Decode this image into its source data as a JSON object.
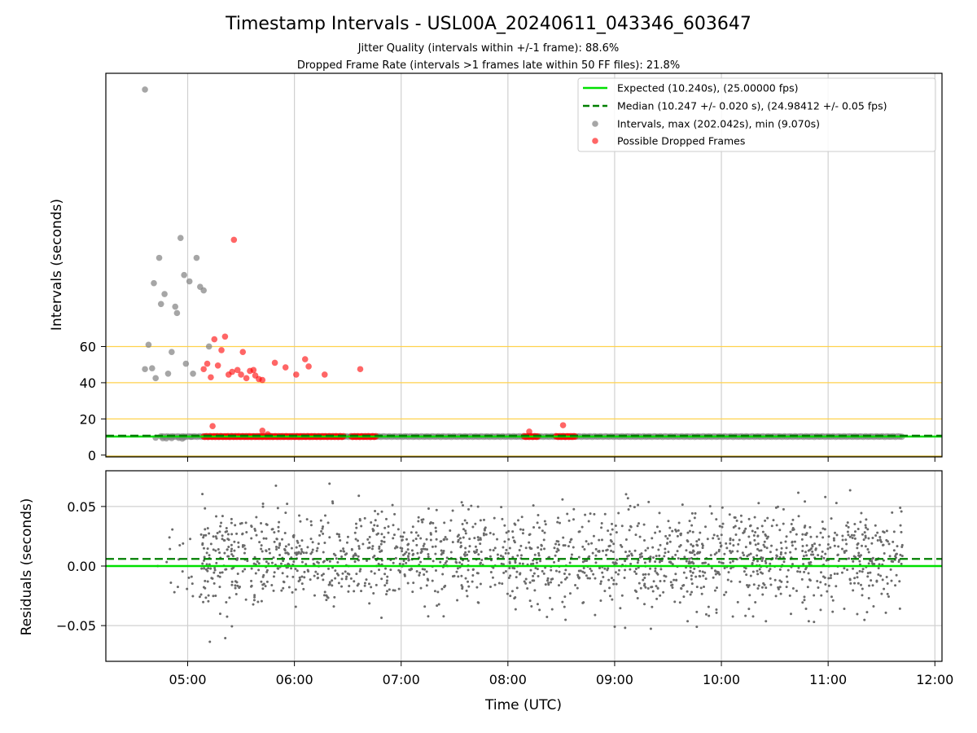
{
  "title": "Timestamp Intervals - USL00A_20240611_043346_603647",
  "subtitle_lines": [
    "Jitter Quality (intervals within +/-1 frame): 88.6%",
    "Dropped Frame Rate (intervals >1 frames late within 50 FF files): 21.8%"
  ],
  "colors": {
    "expected": "#00e000",
    "median": "#007f00",
    "intervals": "#808080",
    "dropped": "#ff0000",
    "threshold_lines": "#ffd24d",
    "grid": "#d0d0d0"
  },
  "chart_data": [
    {
      "type": "scatter",
      "panel": "top",
      "ylabel": "Intervals (seconds)",
      "xlabel": "",
      "xlim": [
        "04:14",
        "12:04"
      ],
      "ylim": [
        -1,
        211
      ],
      "y_ticks": [
        0,
        20,
        40,
        60
      ],
      "x_tick_labels": [
        "05:00",
        "06:00",
        "07:00",
        "08:00",
        "09:00",
        "10:00",
        "11:00",
        "12:00"
      ],
      "threshold_lines": [
        20,
        40,
        60
      ],
      "grid": true,
      "legend_position": "top-right",
      "legend": [
        "Expected (10.240s), (25.00000 fps)",
        "Median (10.247 +/- 0.020 s), (24.98412 +/- 0.05 fps)",
        "Intervals, max (202.042s), min (9.070s)",
        "Possible Dropped Frames"
      ],
      "expected_interval": 10.24,
      "median_interval": 10.247,
      "series": [
        {
          "name": "Intervals, max (202.042s), min (9.070s)",
          "x": [
            "04:36",
            "04:38",
            "04:40",
            "04:41",
            "04:42",
            "04:44",
            "04:45",
            "04:47",
            "04:49",
            "04:51",
            "04:53",
            "04:54",
            "04:56",
            "04:58",
            "04:59",
            "05:01",
            "05:03",
            "05:05",
            "05:07",
            "05:09",
            "05:12",
            "04:42",
            "04:46",
            "04:48",
            "04:51",
            "04:55",
            "04:57",
            "04:58",
            "05:02"
          ],
          "y": [
            47.5,
            61,
            48,
            95,
            42.5,
            109,
            83.5,
            89,
            45,
            57,
            82,
            78.5,
            120,
            99.5,
            50.5,
            96,
            45,
            109,
            93,
            91,
            60,
            9.6,
            9.3,
            9.2,
            9.4,
            9.5,
            9.1,
            9.8,
            10.1
          ]
        },
        {
          "name": "Possible Dropped Frames",
          "x": [
            "05:09",
            "05:11",
            "05:13",
            "05:15",
            "05:17",
            "05:19",
            "05:21",
            "05:23",
            "05:25",
            "05:26",
            "05:28",
            "05:30",
            "05:31",
            "05:33",
            "05:35",
            "05:37",
            "05:38",
            "05:40",
            "05:42",
            "05:45",
            "05:49",
            "05:55",
            "06:01",
            "06:06",
            "06:08",
            "06:17",
            "06:37",
            "05:14",
            "05:42",
            "08:12",
            "08:31"
          ],
          "y": [
            47.5,
            50.5,
            43,
            64,
            49.5,
            58,
            65.5,
            44.5,
            46,
            119,
            47,
            44.5,
            57,
            42.5,
            46.5,
            47,
            44,
            42,
            41.5,
            11.5,
            51,
            48.5,
            44.5,
            53,
            49,
            44.5,
            47.5,
            16,
            13.5,
            13,
            16.5
          ]
        }
      ]
    },
    {
      "type": "scatter",
      "panel": "bottom",
      "xlabel": "Time (UTC)",
      "ylabel": "Residuals (seconds)",
      "xlim": [
        "04:14",
        "12:04"
      ],
      "ylim": [
        -0.08,
        0.08
      ],
      "y_ticks": [
        "0.05",
        "0.00",
        "−0.05"
      ],
      "x_tick_labels": [
        "05:00",
        "06:00",
        "07:00",
        "08:00",
        "09:00",
        "10:00",
        "11:00",
        "12:00"
      ],
      "grid": true,
      "expected_residual": 0.0,
      "median_residual": 0.006,
      "series": [
        {
          "name": "Residuals",
          "x_range": [
            "04:43",
            "11:42"
          ],
          "y_sd": 0.02,
          "point_count": 1800
        }
      ]
    }
  ]
}
